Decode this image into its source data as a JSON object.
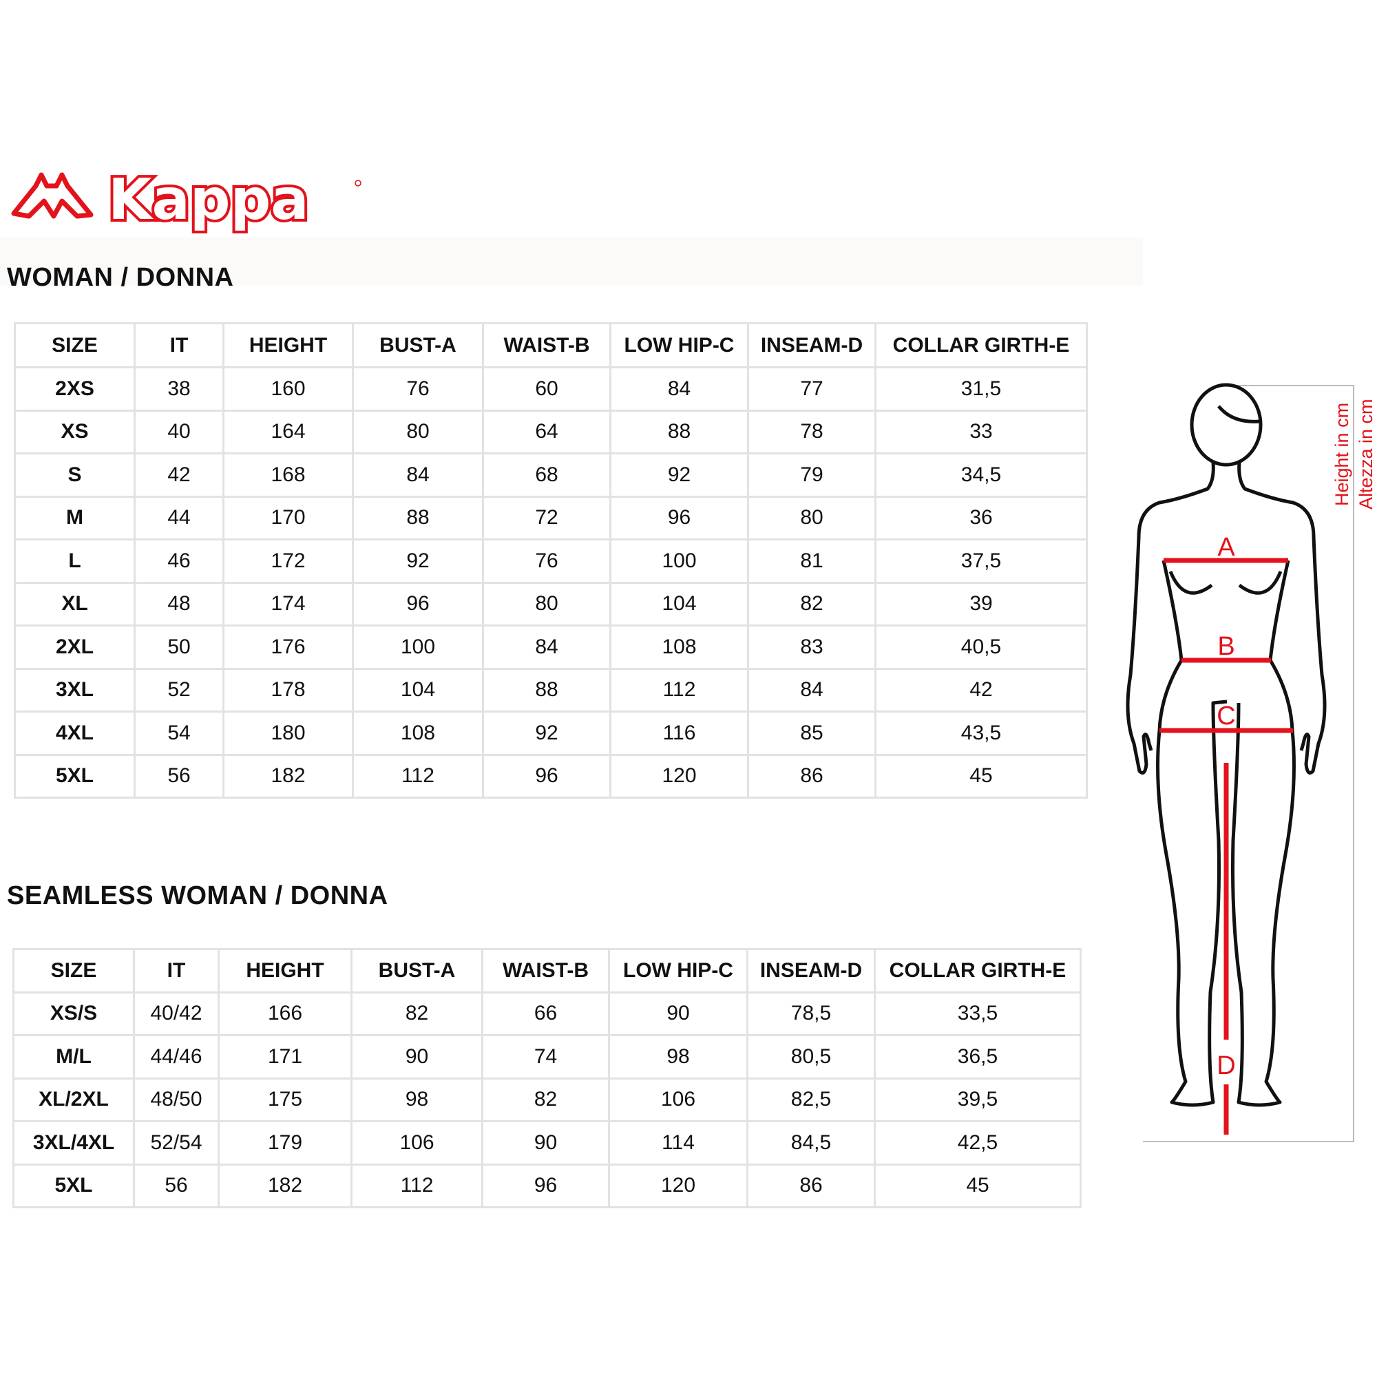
{
  "brand": {
    "logo_text": "Kappa",
    "color": "#e3121b"
  },
  "columns": [
    "SIZE",
    "IT",
    "HEIGHT",
    "BUST-A",
    "WAIST-B",
    "LOW HIP-C",
    "INSEAM-D",
    "COLLAR GIRTH-E"
  ],
  "woman": {
    "title": "WOMAN / DONNA",
    "rows": [
      [
        "2XS",
        "38",
        "160",
        "76",
        "60",
        "84",
        "77",
        "31,5"
      ],
      [
        "XS",
        "40",
        "164",
        "80",
        "64",
        "88",
        "78",
        "33"
      ],
      [
        "S",
        "42",
        "168",
        "84",
        "68",
        "92",
        "79",
        "34,5"
      ],
      [
        "M",
        "44",
        "170",
        "88",
        "72",
        "96",
        "80",
        "36"
      ],
      [
        "L",
        "46",
        "172",
        "92",
        "76",
        "100",
        "81",
        "37,5"
      ],
      [
        "XL",
        "48",
        "174",
        "96",
        "80",
        "104",
        "82",
        "39"
      ],
      [
        "2XL",
        "50",
        "176",
        "100",
        "84",
        "108",
        "83",
        "40,5"
      ],
      [
        "3XL",
        "52",
        "178",
        "104",
        "88",
        "112",
        "84",
        "42"
      ],
      [
        "4XL",
        "54",
        "180",
        "108",
        "92",
        "116",
        "85",
        "43,5"
      ],
      [
        "5XL",
        "56",
        "182",
        "112",
        "96",
        "120",
        "86",
        "45"
      ]
    ]
  },
  "seamless": {
    "title": "SEAMLESS WOMAN / DONNA",
    "rows": [
      [
        "XS/S",
        "40/42",
        "166",
        "82",
        "66",
        "90",
        "78,5",
        "33,5"
      ],
      [
        "M/L",
        "44/46",
        "171",
        "90",
        "74",
        "98",
        "80,5",
        "36,5"
      ],
      [
        "XL/2XL",
        "48/50",
        "175",
        "98",
        "82",
        "106",
        "82,5",
        "39,5"
      ],
      [
        "3XL/4XL",
        "52/54",
        "179",
        "106",
        "90",
        "114",
        "84,5",
        "42,5"
      ],
      [
        "5XL",
        "56",
        "182",
        "112",
        "96",
        "120",
        "86",
        "45"
      ]
    ]
  },
  "figure": {
    "labels": {
      "a": "A",
      "b": "B",
      "c": "C",
      "d": "D"
    },
    "height_en": "Height in cm",
    "height_it": "Altezza in cm",
    "accent": "#e3121b"
  }
}
